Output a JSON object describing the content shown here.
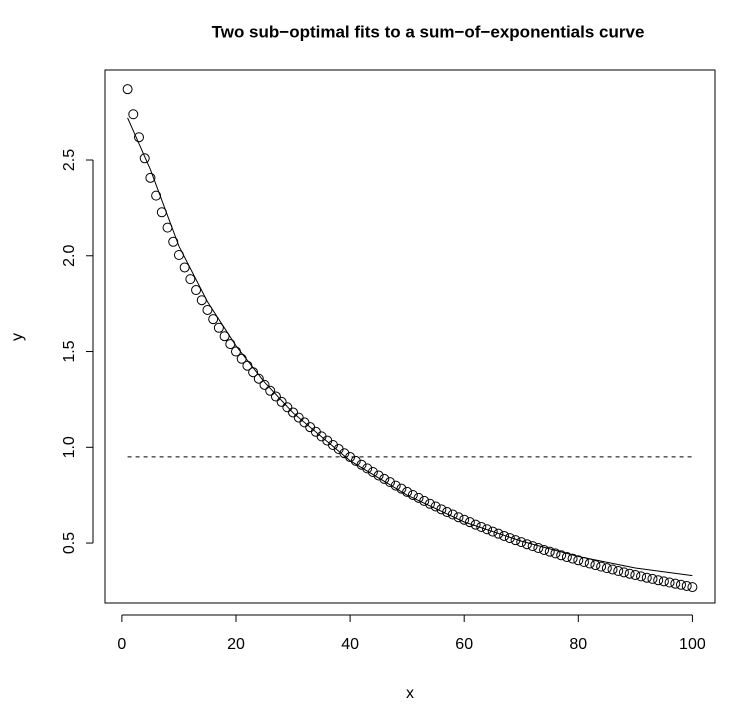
{
  "chart_data": {
    "type": "scatter",
    "title": "Two sub−optimal fits to a sum−of−exponentials curve",
    "x_label": "x",
    "y_label": "y",
    "xlim": [
      -2.96,
      103.96
    ],
    "ylim": [
      0.187,
      2.97
    ],
    "xticks": [
      0,
      20,
      40,
      60,
      80,
      100
    ],
    "yticks": [
      0.5,
      {
        "value": 1,
        "label": "1.0"
      },
      1.5,
      {
        "value": 2,
        "label": "2.0"
      },
      2.5
    ],
    "series": [
      {
        "type": "scatter",
        "color": "#000000",
        "x": [
          1,
          2,
          3,
          4,
          5,
          6,
          7,
          8,
          9,
          10,
          11,
          12,
          13,
          14,
          15,
          16,
          17,
          18,
          19,
          20,
          21,
          22,
          23,
          24,
          25,
          26,
          27,
          28,
          29,
          30,
          31,
          32,
          33,
          34,
          35,
          36,
          37,
          38,
          39,
          40,
          41,
          42,
          43,
          44,
          45,
          46,
          47,
          48,
          49,
          50,
          51,
          52,
          53,
          54,
          55,
          56,
          57,
          58,
          59,
          60,
          61,
          62,
          63,
          64,
          65,
          66,
          67,
          68,
          69,
          70,
          71,
          72,
          73,
          74,
          75,
          76,
          77,
          78,
          79,
          80,
          81,
          82,
          83,
          84,
          85,
          86,
          87,
          88,
          89,
          90,
          91,
          92,
          93,
          94,
          95,
          96,
          97,
          98,
          99,
          100
        ],
        "values": [
          2.87,
          2.739,
          2.619,
          2.509,
          2.407,
          2.314,
          2.227,
          2.147,
          2.073,
          2.004,
          1.939,
          1.878,
          1.821,
          1.768,
          1.717,
          1.669,
          1.624,
          1.58,
          1.539,
          1.5,
          1.462,
          1.426,
          1.392,
          1.358,
          1.326,
          1.295,
          1.265,
          1.237,
          1.209,
          1.182,
          1.155,
          1.13,
          1.105,
          1.081,
          1.057,
          1.035,
          1.012,
          0.991,
          0.969,
          0.949,
          0.929,
          0.909,
          0.89,
          0.871,
          0.853,
          0.835,
          0.818,
          0.8,
          0.784,
          0.767,
          0.751,
          0.736,
          0.72,
          0.705,
          0.691,
          0.676,
          0.662,
          0.649,
          0.635,
          0.622,
          0.609,
          0.596,
          0.584,
          0.572,
          0.56,
          0.549,
          0.537,
          0.526,
          0.515,
          0.505,
          0.494,
          0.484,
          0.474,
          0.464,
          0.455,
          0.446,
          0.436,
          0.427,
          0.419,
          0.41,
          0.401,
          0.393,
          0.385,
          0.377,
          0.369,
          0.362,
          0.354,
          0.347,
          0.34,
          0.333,
          0.326,
          0.319,
          0.313,
          0.306,
          0.3,
          0.294,
          0.288,
          0.282,
          0.276,
          0.27
        ]
      },
      {
        "type": "line",
        "color": "#000000",
        "dash": false,
        "x": [
          1,
          5,
          10,
          15,
          20,
          25,
          30,
          40,
          50,
          60,
          70,
          80,
          90,
          100
        ],
        "values": [
          2.72,
          2.45,
          2.05,
          1.76,
          1.53,
          1.34,
          1.18,
          0.93,
          0.75,
          0.61,
          0.51,
          0.43,
          0.37,
          0.33
        ]
      },
      {
        "type": "line",
        "color": "#000000",
        "dash": true,
        "x": [
          1,
          100
        ],
        "values": [
          0.95,
          0.95
        ]
      }
    ]
  }
}
